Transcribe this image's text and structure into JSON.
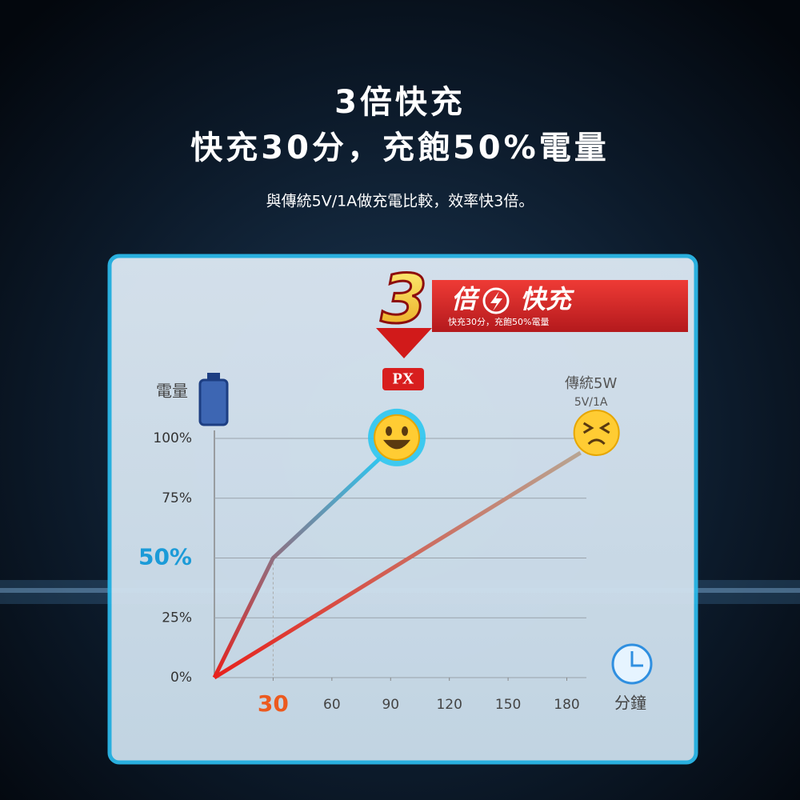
{
  "chart_data": {
    "type": "line",
    "title": "3倍快充",
    "subtitle": "快充30分，充飽50%電量",
    "description": "與傳統5V/1A做充電比較，效率快3倍。",
    "banner": {
      "number": "3",
      "word1": "倍",
      "word2": "快充",
      "caption": "快充30分，充飽50%電量",
      "badge": "PX"
    },
    "y_label": "電量",
    "x_label": "分鐘",
    "xlim": [
      0,
      190
    ],
    "ylim": [
      0,
      100
    ],
    "xticks": [
      {
        "value": 30,
        "label": "30",
        "color": "#ec5a1f"
      },
      60,
      90,
      120,
      150,
      180
    ],
    "yticks": [
      {
        "value": 0,
        "label": "0%"
      },
      {
        "value": 25,
        "label": "25%"
      },
      {
        "value": 50,
        "label": "50%",
        "color": "#1b9bd8"
      },
      {
        "value": 75,
        "label": "75%"
      },
      {
        "value": 100,
        "label": "100%"
      }
    ],
    "grid": true,
    "series": [
      {
        "name": "PX",
        "color": "#2ec6f0",
        "start_color": "#e8211c",
        "x": [
          0,
          30,
          85
        ],
        "values": [
          0,
          50,
          92
        ]
      },
      {
        "name": "傳統5W",
        "note": "5V/1A",
        "color": "#b8a592",
        "start_color": "#e8211c",
        "x": [
          0,
          187
        ],
        "values": [
          0,
          94
        ]
      }
    ]
  }
}
